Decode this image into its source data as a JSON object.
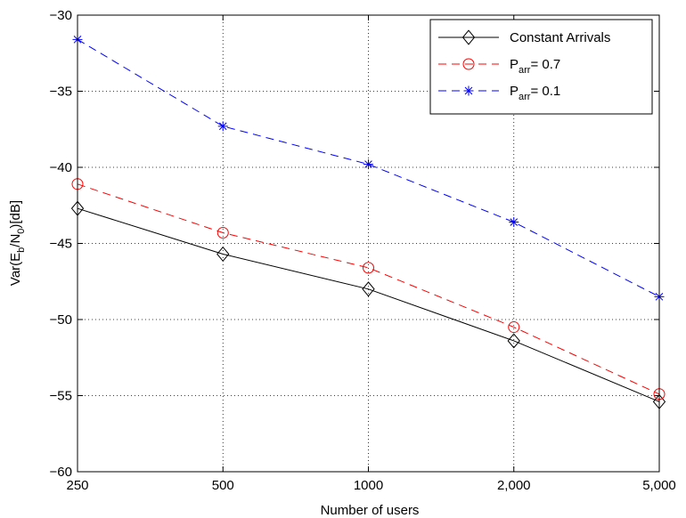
{
  "chart_data": {
    "type": "line",
    "title": "",
    "xlabel": "Number of users",
    "ylabel": {
      "main": "Var(E",
      "sub1": "b",
      "mid": "/N",
      "sub2": "0",
      "tail": ")[dB]"
    },
    "x_ticks": [
      "250",
      "500",
      "1000",
      "2,000",
      "5,000"
    ],
    "y_ticks": [
      -30,
      -35,
      -40,
      -45,
      -50,
      -55,
      -60
    ],
    "ylim": [
      -60,
      -30
    ],
    "grid": true,
    "legend_position": "top-right",
    "series": [
      {
        "name": "Constant Arrivals",
        "name_parts": {
          "main": "Constant Arrivals",
          "sub": "",
          "tail": ""
        },
        "color": "#000000",
        "dash": "solid",
        "marker": "diamond",
        "values": [
          -42.7,
          -45.7,
          -48.0,
          -51.4,
          -55.4
        ]
      },
      {
        "name": "P arr= 0.7",
        "name_parts": {
          "main": "P",
          "sub": "arr",
          "tail": "= 0.7"
        },
        "color": "#ff0000",
        "dash": "dashed",
        "marker": "circle",
        "values": [
          -41.1,
          -44.3,
          -46.6,
          -50.5,
          -54.9
        ]
      },
      {
        "name": "P arr= 0.1",
        "name_parts": {
          "main": "P",
          "sub": "arr",
          "tail": "= 0.1"
        },
        "color": "#0000ff",
        "dash": "dashed",
        "marker": "star",
        "values": [
          -31.6,
          -37.3,
          -39.8,
          -43.6,
          -48.5
        ]
      }
    ]
  }
}
